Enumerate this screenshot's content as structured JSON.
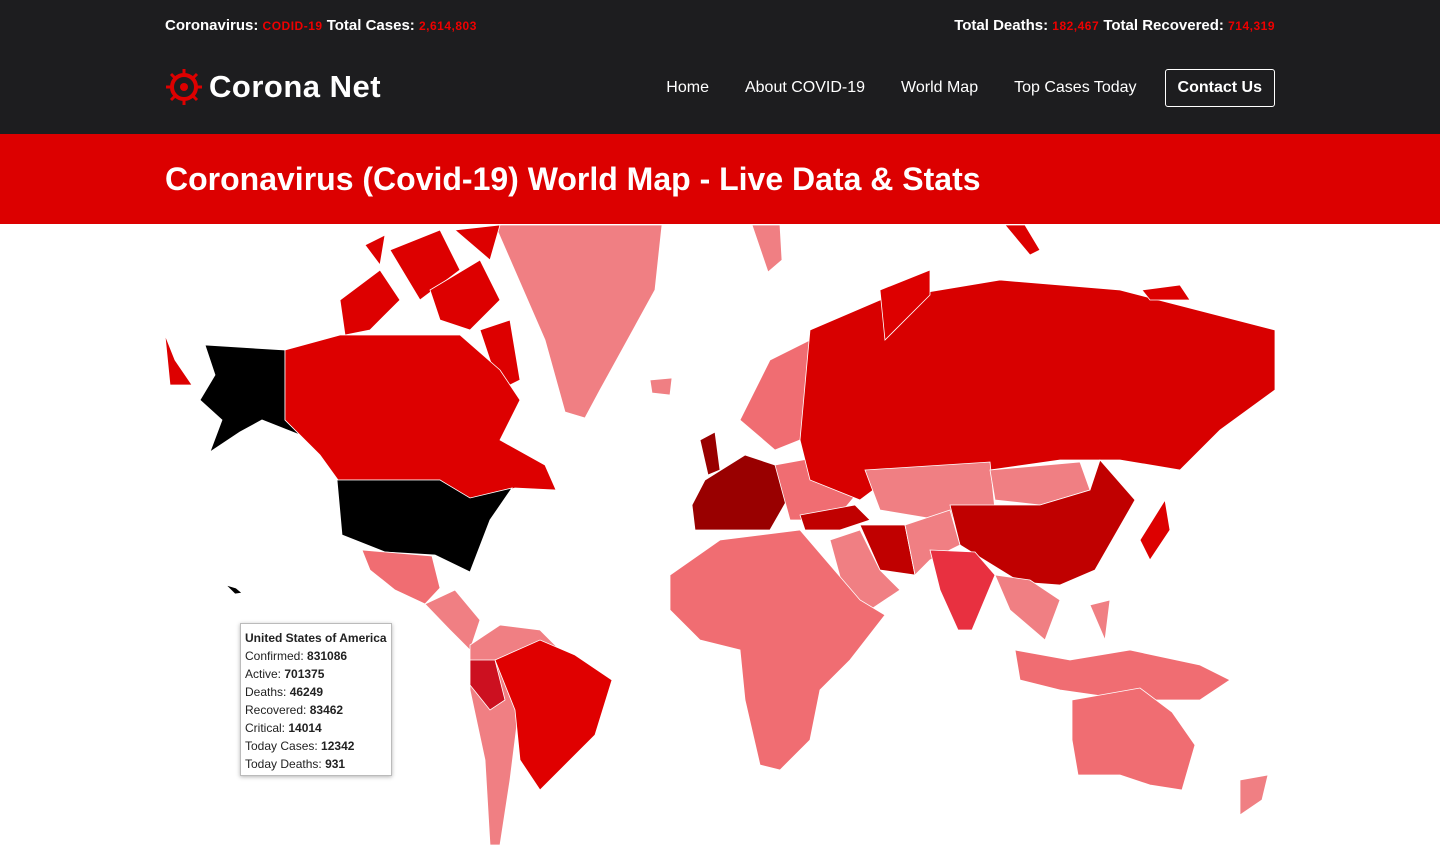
{
  "topbar": {
    "coronavirus_label": "Coronavirus:",
    "coronavirus_value": "CODID-19",
    "total_cases_label": "Total Cases:",
    "total_cases_value": "2,614,803",
    "total_deaths_label": "Total Deaths:",
    "total_deaths_value": "182,467",
    "total_recovered_label": "Total Recovered:",
    "total_recovered_value": "714,319"
  },
  "nav": {
    "brand": "Corona Net",
    "links": [
      "Home",
      "About COVID-19",
      "World Map",
      "Top Cases Today"
    ],
    "cta": "Contact Us"
  },
  "banner": {
    "title": "Coronavirus (Covid-19) World Map - Live Data & Stats"
  },
  "tooltip": {
    "country": "United States of America",
    "rows": [
      {
        "label": "Confirmed:",
        "value": "831086"
      },
      {
        "label": "Active:",
        "value": "701375"
      },
      {
        "label": "Deaths:",
        "value": "46249"
      },
      {
        "label": "Recovered:",
        "value": "83462"
      },
      {
        "label": "Critical:",
        "value": "14014"
      },
      {
        "label": "Today Cases:",
        "value": "12342"
      },
      {
        "label": "Today Deaths:",
        "value": "931"
      }
    ]
  }
}
